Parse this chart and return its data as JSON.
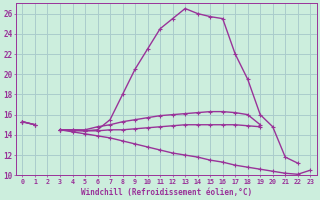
{
  "xlabel": "Windchill (Refroidissement éolien,°C)",
  "background_color": "#cceedd",
  "grid_color": "#aacccc",
  "line_color": "#993399",
  "figsize": [
    3.2,
    2.0
  ],
  "dpi": 100,
  "ylim": [
    10,
    27
  ],
  "xlim": [
    -0.5,
    23.5
  ],
  "yticks": [
    10,
    12,
    14,
    16,
    18,
    20,
    22,
    24,
    26
  ],
  "xticks": [
    0,
    1,
    2,
    3,
    4,
    5,
    6,
    7,
    8,
    9,
    10,
    11,
    12,
    13,
    14,
    15,
    16,
    17,
    18,
    19,
    20,
    21,
    22,
    23
  ],
  "main_y": [
    15.3,
    15.0,
    null,
    14.5,
    14.4,
    14.4,
    14.5,
    15.5,
    18.0,
    20.5,
    22.5,
    24.5,
    25.5,
    26.5,
    26.0,
    25.7,
    25.5,
    22.0,
    19.5,
    16.0,
    14.8,
    11.8,
    11.2,
    null
  ],
  "upper_y": [
    15.3,
    15.0,
    null,
    14.5,
    14.5,
    14.5,
    14.8,
    15.0,
    15.3,
    15.5,
    15.7,
    15.9,
    16.0,
    16.1,
    16.2,
    16.3,
    16.3,
    16.2,
    16.0,
    15.0,
    null,
    null,
    null,
    null
  ],
  "mid_y": [
    15.3,
    15.0,
    null,
    14.5,
    14.5,
    14.4,
    14.4,
    14.5,
    14.5,
    14.6,
    14.7,
    14.8,
    14.9,
    15.0,
    15.0,
    15.0,
    15.0,
    15.0,
    14.9,
    14.8,
    null,
    null,
    null,
    null
  ],
  "bottom_y": [
    15.3,
    null,
    null,
    14.5,
    14.3,
    14.1,
    13.9,
    13.7,
    13.4,
    13.1,
    12.8,
    12.5,
    12.2,
    12.0,
    11.8,
    11.5,
    11.3,
    11.0,
    10.8,
    10.6,
    10.4,
    10.2,
    10.1,
    10.5
  ]
}
